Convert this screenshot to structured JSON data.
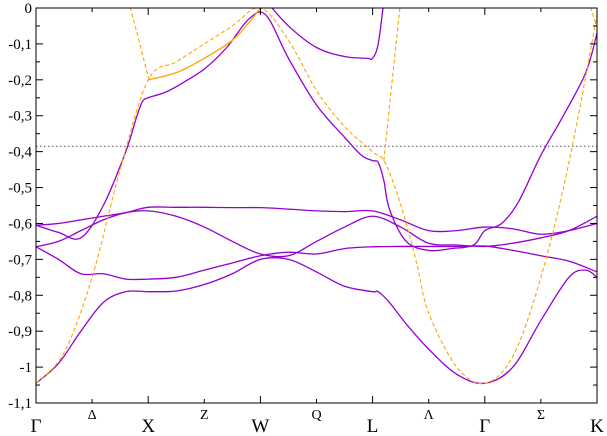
{
  "chart_data": {
    "type": "line",
    "title": "",
    "xlabel": "",
    "ylabel": "",
    "xlim": [
      0,
      10
    ],
    "ylim": [
      -1.1,
      0
    ],
    "grid": false,
    "legend": "none",
    "y_ticks": [
      {
        "value": 0,
        "label": "0"
      },
      {
        "value": -0.1,
        "label": "-0,1"
      },
      {
        "value": -0.2,
        "label": "-0,2"
      },
      {
        "value": -0.3,
        "label": "-0,3"
      },
      {
        "value": -0.4,
        "label": "-0,4"
      },
      {
        "value": -0.5,
        "label": "-0,5"
      },
      {
        "value": -0.6,
        "label": "-0,6"
      },
      {
        "value": -0.7,
        "label": "-0,7"
      },
      {
        "value": -0.8,
        "label": "-0,8"
      },
      {
        "value": -0.9,
        "label": "-0,9"
      },
      {
        "value": -1,
        "label": "-1"
      },
      {
        "value": -1.1,
        "label": "-1,1"
      }
    ],
    "x_ticks": [
      {
        "value": 0,
        "label": "Γ",
        "kind": "point"
      },
      {
        "value": 1,
        "label": "Δ",
        "kind": "segment"
      },
      {
        "value": 2,
        "label": "X",
        "kind": "point"
      },
      {
        "value": 3,
        "label": "Z",
        "kind": "segment"
      },
      {
        "value": 4,
        "label": "W",
        "kind": "point"
      },
      {
        "value": 5,
        "label": "Q",
        "kind": "segment"
      },
      {
        "value": 6,
        "label": "L",
        "kind": "point"
      },
      {
        "value": 7,
        "label": "Λ",
        "kind": "segment"
      },
      {
        "value": 8,
        "label": "Γ",
        "kind": "point"
      },
      {
        "value": 9,
        "label": "Σ",
        "kind": "segment"
      },
      {
        "value": 10,
        "label": "K",
        "kind": "point"
      }
    ],
    "reference_line": {
      "y": -0.385,
      "style": "dotted",
      "color": "#555555"
    },
    "series": [
      {
        "style": "solid",
        "color": "#9400d3",
        "x": [
          0,
          0.4,
          0.8,
          1.2,
          1.6,
          2.0,
          2.5,
          3.0,
          3.5,
          4.0,
          4.5,
          5.0,
          5.5,
          6.0,
          6.1,
          6.3,
          6.6,
          7.0,
          7.5,
          8.0,
          8.5,
          9.0,
          9.5,
          9.8,
          10
        ],
        "y": [
          -1.045,
          -0.99,
          -0.9,
          -0.82,
          -0.79,
          -0.79,
          -0.788,
          -0.77,
          -0.74,
          -0.7,
          -0.7,
          -0.735,
          -0.775,
          -0.79,
          -0.79,
          -0.82,
          -0.88,
          -0.95,
          -1.02,
          -1.045,
          -1.0,
          -0.87,
          -0.75,
          -0.73,
          -0.75
        ]
      },
      {
        "style": "solid",
        "color": "#9400d3",
        "x": [
          0,
          0.4,
          0.8,
          1.2,
          1.6,
          2.0,
          2.5,
          3.0,
          3.5,
          4.0,
          4.5,
          5.0,
          5.5,
          6.0,
          6.5,
          7.0,
          7.5,
          8.0,
          8.5,
          9.0,
          9.5,
          10
        ],
        "y": [
          -0.665,
          -0.7,
          -0.74,
          -0.74,
          -0.755,
          -0.755,
          -0.75,
          -0.73,
          -0.71,
          -0.69,
          -0.68,
          -0.685,
          -0.67,
          -0.665,
          -0.664,
          -0.664,
          -0.664,
          -0.663,
          -0.675,
          -0.69,
          -0.705,
          -0.735
        ]
      },
      {
        "style": "solid",
        "color": "#9400d3",
        "x": [
          0,
          0.4,
          0.8,
          1.2,
          1.6,
          2.0,
          2.5,
          3.0,
          3.5,
          4.0,
          4.5,
          5.0,
          5.5,
          6.0,
          6.5,
          7.0,
          7.5,
          8.0,
          8.5,
          9.0,
          9.5,
          10
        ],
        "y": [
          -0.665,
          -0.65,
          -0.62,
          -0.59,
          -0.57,
          -0.565,
          -0.58,
          -0.61,
          -0.65,
          -0.685,
          -0.69,
          -0.65,
          -0.61,
          -0.58,
          -0.61,
          -0.655,
          -0.66,
          -0.664,
          -0.655,
          -0.64,
          -0.62,
          -0.58
        ]
      },
      {
        "style": "solid",
        "color": "#9400d3",
        "x": [
          0,
          0.4,
          0.8,
          1.2,
          1.6,
          2.0,
          2.5,
          3.0,
          3.5,
          4.0,
          4.5,
          5.0,
          5.5,
          6.0,
          6.5,
          7.0,
          7.5,
          8.0,
          8.5,
          9.0,
          9.5,
          10
        ],
        "y": [
          -0.605,
          -0.6,
          -0.59,
          -0.58,
          -0.57,
          -0.555,
          -0.555,
          -0.555,
          -0.556,
          -0.556,
          -0.56,
          -0.565,
          -0.567,
          -0.565,
          -0.59,
          -0.62,
          -0.62,
          -0.61,
          -0.615,
          -0.63,
          -0.62,
          -0.6
        ]
      },
      {
        "style": "solid",
        "color": "#9400d3",
        "x": [
          0,
          0.4,
          0.8,
          1.2,
          1.6,
          1.8,
          1.9,
          2.0,
          2.3,
          2.6,
          3.0,
          3.4,
          3.8,
          4.1,
          4.5,
          5.0,
          5.5,
          5.8,
          6.0,
          6.1,
          6.2,
          6.3,
          6.6,
          7.0,
          7.4,
          7.8,
          8.0,
          8.3,
          8.6,
          9.0,
          9.4,
          9.8,
          10
        ],
        "y": [
          -0.605,
          -0.625,
          -0.64,
          -0.55,
          -0.4,
          -0.3,
          -0.26,
          -0.25,
          -0.235,
          -0.21,
          -0.17,
          -0.11,
          -0.03,
          -0.02,
          -0.14,
          -0.27,
          -0.36,
          -0.41,
          -0.425,
          -0.43,
          -0.48,
          -0.56,
          -0.65,
          -0.675,
          -0.67,
          -0.66,
          -0.62,
          -0.6,
          -0.54,
          -0.41,
          -0.3,
          -0.18,
          -0.07
        ]
      },
      {
        "style": "solid",
        "color": "#9400d3",
        "x": [
          4.1,
          4.5,
          5.0,
          5.5,
          5.9,
          6.0,
          6.1,
          6.2
        ],
        "y": [
          0.02,
          -0.05,
          -0.11,
          -0.135,
          -0.14,
          -0.14,
          -0.1,
          0.02
        ]
      },
      {
        "style": "solid",
        "color": "#ffa500",
        "x": [
          2.0,
          2.5,
          3.0,
          3.5,
          3.8,
          4.0,
          4.1
        ],
        "y": [
          -0.2,
          -0.18,
          -0.14,
          -0.09,
          -0.04,
          0.0,
          0.02
        ]
      },
      {
        "style": "dashed",
        "color": "#ffa500",
        "x": [
          0,
          0.5,
          1.0,
          1.5,
          2.0,
          2.5,
          3.0,
          3.5,
          4.0,
          4.5,
          5.0,
          5.5,
          6.0,
          6.2,
          6.4,
          6.6,
          6.8,
          7.0,
          7.5,
          8.0,
          8.5,
          9.0,
          9.5,
          10
        ],
        "y": [
          -1.045,
          -0.96,
          -0.75,
          -0.45,
          -0.2,
          -0.15,
          -0.1,
          -0.05,
          0.0,
          -0.09,
          -0.23,
          -0.33,
          -0.4,
          -0.425,
          -0.5,
          -0.6,
          -0.72,
          -0.85,
          -1.0,
          -1.045,
          -0.97,
          -0.75,
          -0.43,
          -0.02
        ]
      },
      {
        "style": "dashed",
        "color": "#ffa500",
        "x": [
          1.65,
          1.75,
          1.85,
          2.0,
          2.05
        ],
        "y": [
          0.02,
          -0.04,
          -0.1,
          -0.19,
          -0.2
        ]
      },
      {
        "style": "dashed",
        "color": "#ffa500",
        "x": [
          6.2,
          6.35,
          6.5
        ],
        "y": [
          -0.425,
          -0.2,
          0.02
        ]
      },
      {
        "style": "dashed",
        "color": "#ffa500",
        "x": [
          9.85,
          9.95,
          10
        ],
        "y": [
          0.02,
          -0.03,
          -0.05
        ]
      }
    ]
  }
}
